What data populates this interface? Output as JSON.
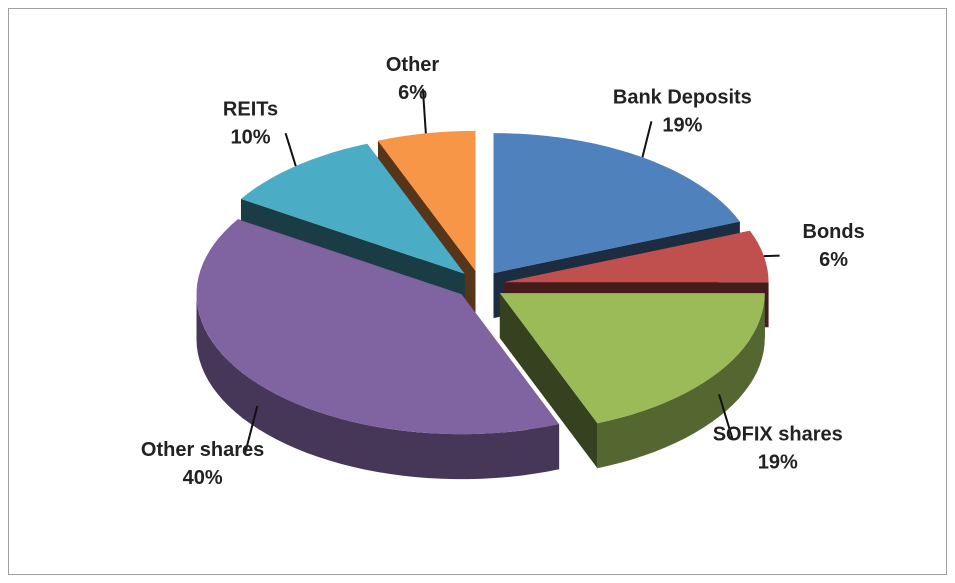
{
  "chart_data": {
    "type": "pie",
    "categories": [
      "Bank Deposits",
      "Bonds",
      "SOFIX shares",
      "Other shares",
      "REITs",
      "Other"
    ],
    "values": [
      19,
      6,
      19,
      40,
      10,
      6
    ],
    "value_labels": [
      "19%",
      "6%",
      "19%",
      "40%",
      "10%",
      "6%"
    ],
    "colors": [
      "#4f81bd",
      "#c0504d",
      "#9bbb59",
      "#8064a2",
      "#4bacc6",
      "#f79646"
    ]
  }
}
